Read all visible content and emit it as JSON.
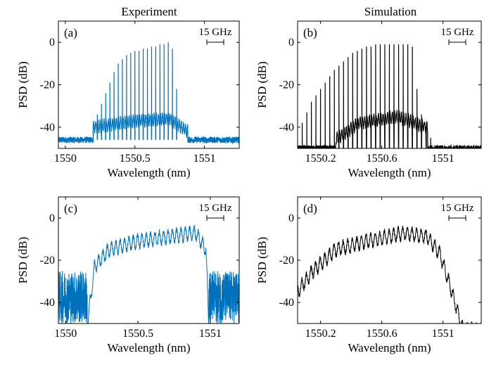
{
  "column_titles": [
    "Experiment",
    "Simulation"
  ],
  "chart_data": [
    {
      "panel": "(a)",
      "type": "line",
      "title": "",
      "series": [
        {
          "color": "#0072BD"
        }
      ],
      "xlabel": "Wavelength (nm)",
      "ylabel": "PSD (dB)",
      "xlim": [
        1549.95,
        1551.25
      ],
      "ylim": [
        -50,
        10
      ],
      "xticks": [
        1550,
        1550.5,
        1551
      ],
      "xtick_labels": [
        "1550",
        "1550.5",
        "1551"
      ],
      "yticks": [
        0,
        -20,
        -40
      ],
      "ytick_labels": [
        "0",
        "-20",
        "-40"
      ],
      "scale_bar": "15 GHz",
      "spectrum": {
        "kind": "comb",
        "center": 1550.5,
        "lines": 21,
        "spacing": 0.03,
        "line_peaks_db": [
          -40,
          -34,
          -29,
          -24,
          -19,
          -14,
          -10,
          -8,
          -6,
          -5,
          -4,
          -4,
          -3,
          -3,
          -2,
          -2,
          -1,
          -1,
          0,
          -3,
          -22
        ],
        "floor_db": -46,
        "pedestal": [
          [
            1550.2,
            -40
          ],
          [
            1550.5,
            -37
          ],
          [
            1550.75,
            -36
          ],
          [
            1550.88,
            -42
          ]
        ]
      }
    },
    {
      "panel": "(b)",
      "type": "line",
      "title": "",
      "series": [
        {
          "color": "#000000"
        }
      ],
      "xlabel": "Wavelength (nm)",
      "ylabel": "PSD (dB)",
      "xlim": [
        1550.05,
        1551.25
      ],
      "ylim": [
        -50,
        10
      ],
      "xticks": [
        1550.2,
        1550.6,
        1551
      ],
      "xtick_labels": [
        "1550.2",
        "1550.6",
        "1551"
      ],
      "yticks": [
        0,
        -20,
        -40
      ],
      "ytick_labels": [
        "0",
        "-20",
        "-40"
      ],
      "scale_bar": "15 GHz",
      "spectrum": {
        "kind": "comb",
        "lines": 29,
        "first_line": 1550.08,
        "spacing": 0.03,
        "line_peaks_db": [
          -38,
          -33,
          -28,
          -25,
          -22,
          -19,
          -16,
          -13,
          -11,
          -9,
          -7,
          -5,
          -4,
          -3,
          -2,
          -2,
          -1,
          -1,
          -1,
          -1,
          -1,
          -1,
          -1,
          -1,
          -2,
          -22,
          -34,
          -40,
          -45
        ],
        "floor_db": -50,
        "pedestal": [
          [
            1550.3,
            -46
          ],
          [
            1550.45,
            -38
          ],
          [
            1550.7,
            -35
          ],
          [
            1550.9,
            -40
          ]
        ]
      }
    },
    {
      "panel": "(c)",
      "type": "line",
      "title": "",
      "series": [
        {
          "color": "#0072BD"
        }
      ],
      "xlabel": "Wavelength (nm)",
      "ylabel": "PSD (dB)",
      "xlim": [
        1549.95,
        1551.2
      ],
      "ylim": [
        -50,
        10
      ],
      "xticks": [
        1550,
        1550.5,
        1551
      ],
      "xtick_labels": [
        "1550",
        "1550.5",
        "1551"
      ],
      "yticks": [
        0,
        -20,
        -40
      ],
      "ytick_labels": [
        "0",
        "-20",
        "-40"
      ],
      "scale_bar": "15 GHz",
      "spectrum": {
        "kind": "broadband",
        "band": [
          1550.15,
          1550.99
        ],
        "noise_floor_db": [
          -50,
          -25
        ],
        "envelope": [
          [
            1550.15,
            -48
          ],
          [
            1550.2,
            -20
          ],
          [
            1550.3,
            -12
          ],
          [
            1550.5,
            -8
          ],
          [
            1550.9,
            -4
          ],
          [
            1550.97,
            -12
          ],
          [
            1550.99,
            -48
          ]
        ],
        "ripple_period": 0.03,
        "ripple_db": 3
      }
    },
    {
      "panel": "(d)",
      "type": "line",
      "title": "",
      "series": [
        {
          "color": "#000000"
        }
      ],
      "xlabel": "Wavelength (nm)",
      "ylabel": "PSD (dB)",
      "xlim": [
        1550.05,
        1551.25
      ],
      "ylim": [
        -50,
        10
      ],
      "xticks": [
        1550.2,
        1550.6,
        1551
      ],
      "xtick_labels": [
        "1550.2",
        "1550.6",
        "1551"
      ],
      "yticks": [
        0,
        -20,
        -40
      ],
      "ytick_labels": [
        "0",
        "-20",
        "-40"
      ],
      "scale_bar": "15 GHz",
      "spectrum": {
        "kind": "broadband",
        "envelope": [
          [
            1550.05,
            -32
          ],
          [
            1550.15,
            -22
          ],
          [
            1550.3,
            -12
          ],
          [
            1550.5,
            -8
          ],
          [
            1550.75,
            -4
          ],
          [
            1550.9,
            -6
          ],
          [
            1550.98,
            -14
          ],
          [
            1551.05,
            -30
          ],
          [
            1551.13,
            -50
          ]
        ],
        "ripple_period": 0.03,
        "ripple_db": 3
      }
    }
  ]
}
